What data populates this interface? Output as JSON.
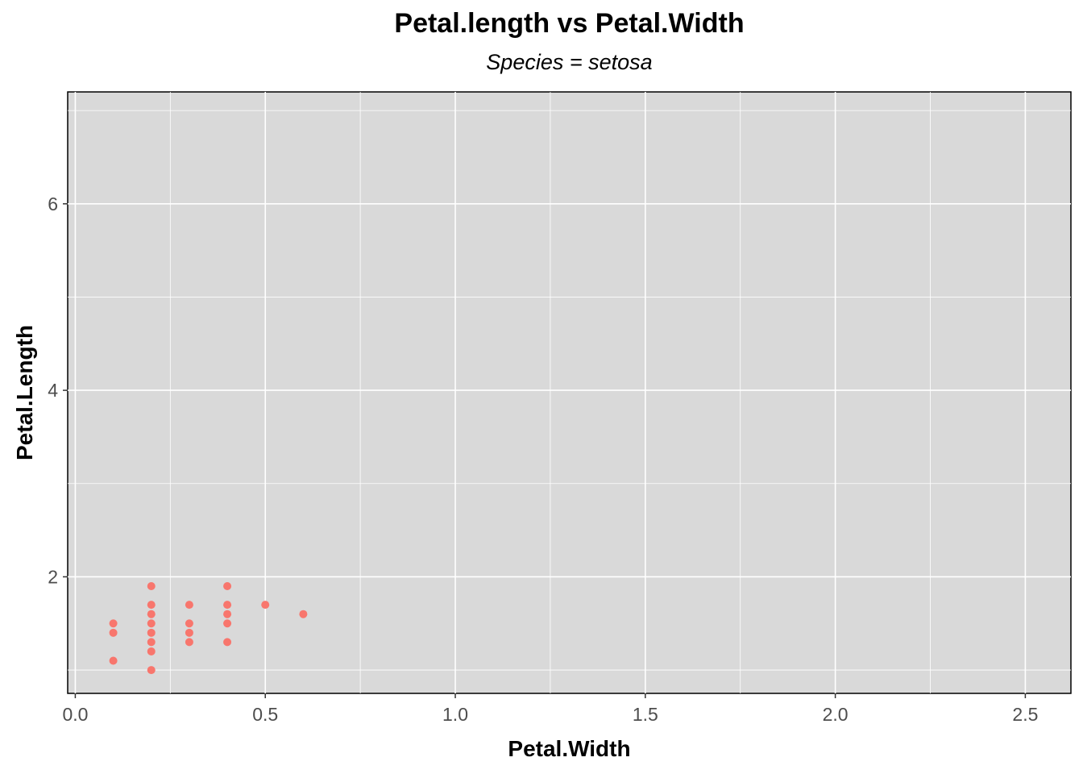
{
  "chart_data": {
    "type": "scatter",
    "title": "Petal.length vs Petal.Width",
    "subtitle": "Species = setosa",
    "xlabel": "Petal.Width",
    "ylabel": "Petal.Length",
    "xlim": [
      -0.02,
      2.62
    ],
    "ylim": [
      0.75,
      7.2
    ],
    "x_ticks": [
      0.0,
      0.5,
      1.0,
      1.5,
      2.0,
      2.5
    ],
    "x_tick_labels": [
      "0.0",
      "0.5",
      "1.0",
      "1.5",
      "2.0",
      "2.5"
    ],
    "y_ticks": [
      2,
      4,
      6
    ],
    "y_tick_labels": [
      "2",
      "4",
      "6"
    ],
    "grid": true,
    "panel_background": "#d9d9d9",
    "grid_color": "#ffffff",
    "point_color": "#f8766d",
    "points": [
      {
        "x": 0.1,
        "y": 1.1
      },
      {
        "x": 0.1,
        "y": 1.4
      },
      {
        "x": 0.1,
        "y": 1.5
      },
      {
        "x": 0.2,
        "y": 1.0
      },
      {
        "x": 0.2,
        "y": 1.2
      },
      {
        "x": 0.2,
        "y": 1.3
      },
      {
        "x": 0.2,
        "y": 1.4
      },
      {
        "x": 0.2,
        "y": 1.5
      },
      {
        "x": 0.2,
        "y": 1.6
      },
      {
        "x": 0.2,
        "y": 1.7
      },
      {
        "x": 0.2,
        "y": 1.9
      },
      {
        "x": 0.3,
        "y": 1.3
      },
      {
        "x": 0.3,
        "y": 1.4
      },
      {
        "x": 0.3,
        "y": 1.5
      },
      {
        "x": 0.3,
        "y": 1.7
      },
      {
        "x": 0.4,
        "y": 1.3
      },
      {
        "x": 0.4,
        "y": 1.5
      },
      {
        "x": 0.4,
        "y": 1.6
      },
      {
        "x": 0.4,
        "y": 1.7
      },
      {
        "x": 0.4,
        "y": 1.9
      },
      {
        "x": 0.5,
        "y": 1.7
      },
      {
        "x": 0.6,
        "y": 1.6
      }
    ]
  }
}
